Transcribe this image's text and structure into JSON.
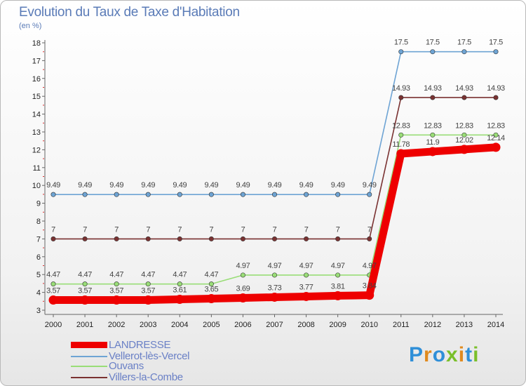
{
  "title": "Evolution du Taux de Taxe d'Habitation",
  "unit": "(en %)",
  "logo": {
    "text": "Proxiti",
    "colors": [
      "#2f8fd8",
      "#e08a1e",
      "#2f8fd8",
      "#7abf2a",
      "#e08a1e",
      "#2f8fd8",
      "#7abf2a"
    ]
  },
  "chart_data": {
    "type": "line",
    "title": "Evolution du Taux de Taxe d'Habitation",
    "ylabel": "(en %)",
    "xlabel": "",
    "x": [
      2000,
      2001,
      2002,
      2003,
      2004,
      2005,
      2006,
      2007,
      2008,
      2009,
      2010,
      2011,
      2012,
      2013,
      2014
    ],
    "ylim": [
      3,
      18
    ],
    "yticks": [
      3,
      4,
      5,
      6,
      7,
      8,
      9,
      10,
      11,
      12,
      13,
      14,
      15,
      16,
      17,
      18
    ],
    "grid": false,
    "legend": "bottom-left",
    "series": [
      {
        "name": "LANDRESSE",
        "color": "#ee0000",
        "values": [
          3.57,
          3.57,
          3.57,
          3.57,
          3.61,
          3.65,
          3.69,
          3.73,
          3.77,
          3.81,
          3.84,
          11.78,
          11.9,
          12.02,
          12.14
        ],
        "labels": [
          "3.57",
          "3.57",
          "3.57",
          "3.57",
          "3.61",
          "3.65",
          "3.69",
          "3.73",
          "3.77",
          "3.81",
          "3.84",
          "11.78",
          "11.9",
          "12.02",
          "12.14"
        ]
      },
      {
        "name": "Vellerot-lès-Vercel",
        "color": "#6ea4d4",
        "values": [
          9.49,
          9.49,
          9.49,
          9.49,
          9.49,
          9.49,
          9.49,
          9.49,
          9.49,
          9.49,
          9.49,
          17.5,
          17.5,
          17.5,
          17.5
        ],
        "labels": [
          "9.49",
          "9.49",
          "9.49",
          "9.49",
          "9.49",
          "9.49",
          "9.49",
          "9.49",
          "9.49",
          "9.49",
          "9.49",
          "17.5",
          "17.5",
          "17.5",
          "17.5"
        ]
      },
      {
        "name": "Ouvans",
        "color": "#99dd77",
        "values": [
          4.47,
          4.47,
          4.47,
          4.47,
          4.47,
          4.47,
          4.97,
          4.97,
          4.97,
          4.97,
          4.97,
          12.83,
          12.83,
          12.83,
          12.83
        ],
        "labels": [
          "4.47",
          "4.47",
          "4.47",
          "4.47",
          "4.47",
          "4.47",
          "4.97",
          "4.97",
          "4.97",
          "4.97",
          "4.97",
          "12.83",
          "12.83",
          "12.83",
          "12.83"
        ]
      },
      {
        "name": "Villers-la-Combe",
        "color": "#7a3232",
        "values": [
          7,
          7,
          7,
          7,
          7,
          7,
          7,
          7,
          7,
          7,
          7,
          14.93,
          14.93,
          14.93,
          14.93
        ],
        "labels": [
          "7",
          "7",
          "7",
          "7",
          "7",
          "7",
          "7",
          "7",
          "7",
          "7",
          "7",
          "14.93",
          "14.93",
          "14.93",
          "14.93"
        ]
      }
    ]
  }
}
